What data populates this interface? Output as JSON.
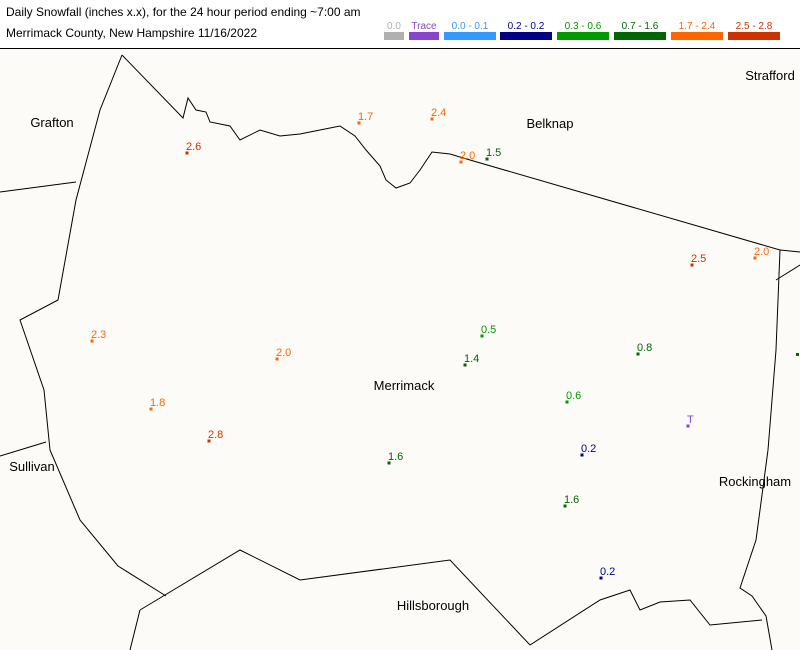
{
  "header": {
    "title": "Daily Snowfall (inches  x.x),  for the 24 hour period ending ~7:00 am",
    "subtitle": "Merrimack County, New Hampshire  11/16/2022"
  },
  "legend": [
    {
      "label": "0.0",
      "color": "#b0b0b0"
    },
    {
      "label": "Trace",
      "color": "#8844cc"
    },
    {
      "label": "0.0 - 0.1",
      "color": "#3399ff"
    },
    {
      "label": "0.2 - 0.2",
      "color": "#000088"
    },
    {
      "label": "0.3 - 0.6",
      "color": "#009900"
    },
    {
      "label": "0.7 - 1.6",
      "color": "#006600"
    },
    {
      "label": "1.7 - 2.4",
      "color": "#ff6600"
    },
    {
      "label": "2.5 - 2.8",
      "color": "#cc3300"
    }
  ],
  "counties": [
    "Grafton",
    "Belknap",
    "Strafford",
    "Merrimack",
    "Sullivan",
    "Rockingham",
    "Hillsborough"
  ],
  "stations": [
    {
      "label": "1.7",
      "color": "#ff6600"
    },
    {
      "label": "2.4",
      "color": "#ff6600"
    },
    {
      "label": "2.6",
      "color": "#cc3300"
    },
    {
      "label": "2.0",
      "color": "#ff6600"
    },
    {
      "label": "1.5",
      "color": "#006600"
    },
    {
      "label": "2.5",
      "color": "#cc3300"
    },
    {
      "label": "2.0",
      "color": "#ff6600"
    },
    {
      "label": "0.5",
      "color": "#009900"
    },
    {
      "label": "2.3",
      "color": "#ff6600"
    },
    {
      "label": "0.8",
      "color": "#006600"
    },
    {
      "label": "2.0",
      "color": "#ff6600"
    },
    {
      "label": "1.4",
      "color": "#006600"
    },
    {
      "label": "0.6",
      "color": "#009900"
    },
    {
      "label": "1.8",
      "color": "#ff6600"
    },
    {
      "label": "T",
      "color": "#8844cc"
    },
    {
      "label": "2.8",
      "color": "#cc3300"
    },
    {
      "label": "0.2",
      "color": "#000088"
    },
    {
      "label": "1.6",
      "color": "#006600"
    },
    {
      "label": "1.6",
      "color": "#006600"
    },
    {
      "label": "0.2",
      "color": "#000088"
    }
  ]
}
